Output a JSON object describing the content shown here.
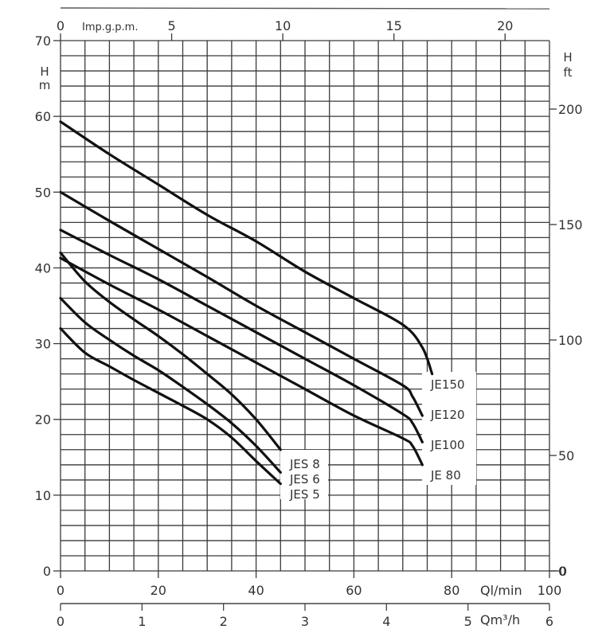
{
  "chart_data": {
    "type": "line",
    "title": "",
    "xlabel": "Ql/min",
    "xlabel_secondary": "Qm³/h",
    "xlabel_top": "Imp.g.p.m.",
    "ylabel": "H m",
    "ylabel_right": "H ft",
    "xlim": [
      0,
      100
    ],
    "ylim": [
      0,
      70
    ],
    "grid": true,
    "x_ticks": [
      0,
      20,
      40,
      60,
      80,
      100
    ],
    "x_ticks_m3h": [
      0,
      1,
      2,
      3,
      4,
      5,
      6
    ],
    "x_ticks_impgpm": [
      0,
      5,
      10,
      15,
      20
    ],
    "y_ticks": [
      0,
      10,
      20,
      30,
      40,
      50,
      60,
      70
    ],
    "y_ticks_ft": [
      0,
      50,
      100,
      150,
      200
    ],
    "series": [
      {
        "name": "JE150",
        "x": [
          0,
          10,
          20,
          30,
          40,
          50,
          60,
          70,
          74,
          76
        ],
        "y": [
          59.3,
          55,
          51,
          47,
          43.5,
          39.5,
          36,
          32.5,
          29.5,
          26
        ]
      },
      {
        "name": "JE120",
        "x": [
          0,
          10,
          20,
          30,
          40,
          50,
          60,
          70,
          72,
          74
        ],
        "y": [
          50,
          46.2,
          42.5,
          38.8,
          35,
          31.5,
          28,
          24.5,
          23,
          20.5
        ]
      },
      {
        "name": "JE100",
        "x": [
          0,
          10,
          20,
          30,
          40,
          50,
          60,
          70,
          72,
          74
        ],
        "y": [
          45,
          41.7,
          38.5,
          35,
          31.5,
          28,
          24.5,
          20.7,
          19.5,
          17
        ]
      },
      {
        "name": "JE 80",
        "x": [
          0,
          10,
          20,
          30,
          40,
          50,
          60,
          70,
          72,
          74
        ],
        "y": [
          41.3,
          37.8,
          34.5,
          31,
          27.5,
          24,
          20.5,
          17.5,
          16.5,
          14
        ]
      },
      {
        "name": "JES 8",
        "x": [
          0,
          5,
          10,
          15,
          20,
          25,
          30,
          35,
          40,
          45
        ],
        "y": [
          42,
          38.2,
          35.5,
          33.2,
          31,
          28.6,
          26,
          23.3,
          20,
          16
        ]
      },
      {
        "name": "JES 6",
        "x": [
          0,
          5,
          10,
          15,
          20,
          25,
          30,
          35,
          40,
          45
        ],
        "y": [
          36,
          32.8,
          30.5,
          28.4,
          26.5,
          24.3,
          22,
          19.5,
          16.5,
          13
        ]
      },
      {
        "name": "JES 5",
        "x": [
          0,
          5,
          10,
          15,
          20,
          25,
          30,
          35,
          40,
          45
        ],
        "y": [
          32,
          28.8,
          27,
          25.2,
          23.5,
          21.8,
          20,
          17.6,
          14.5,
          11.5
        ]
      }
    ]
  },
  "labels": {
    "left_unit_top": "H",
    "left_unit_bottom": "m",
    "right_unit_top": "H",
    "right_unit_bottom": "ft",
    "top_axis_title": "Imp.g.p.m.",
    "bottom_axis_title": "Ql/min",
    "secondary_axis_title": "Qm³/h"
  }
}
